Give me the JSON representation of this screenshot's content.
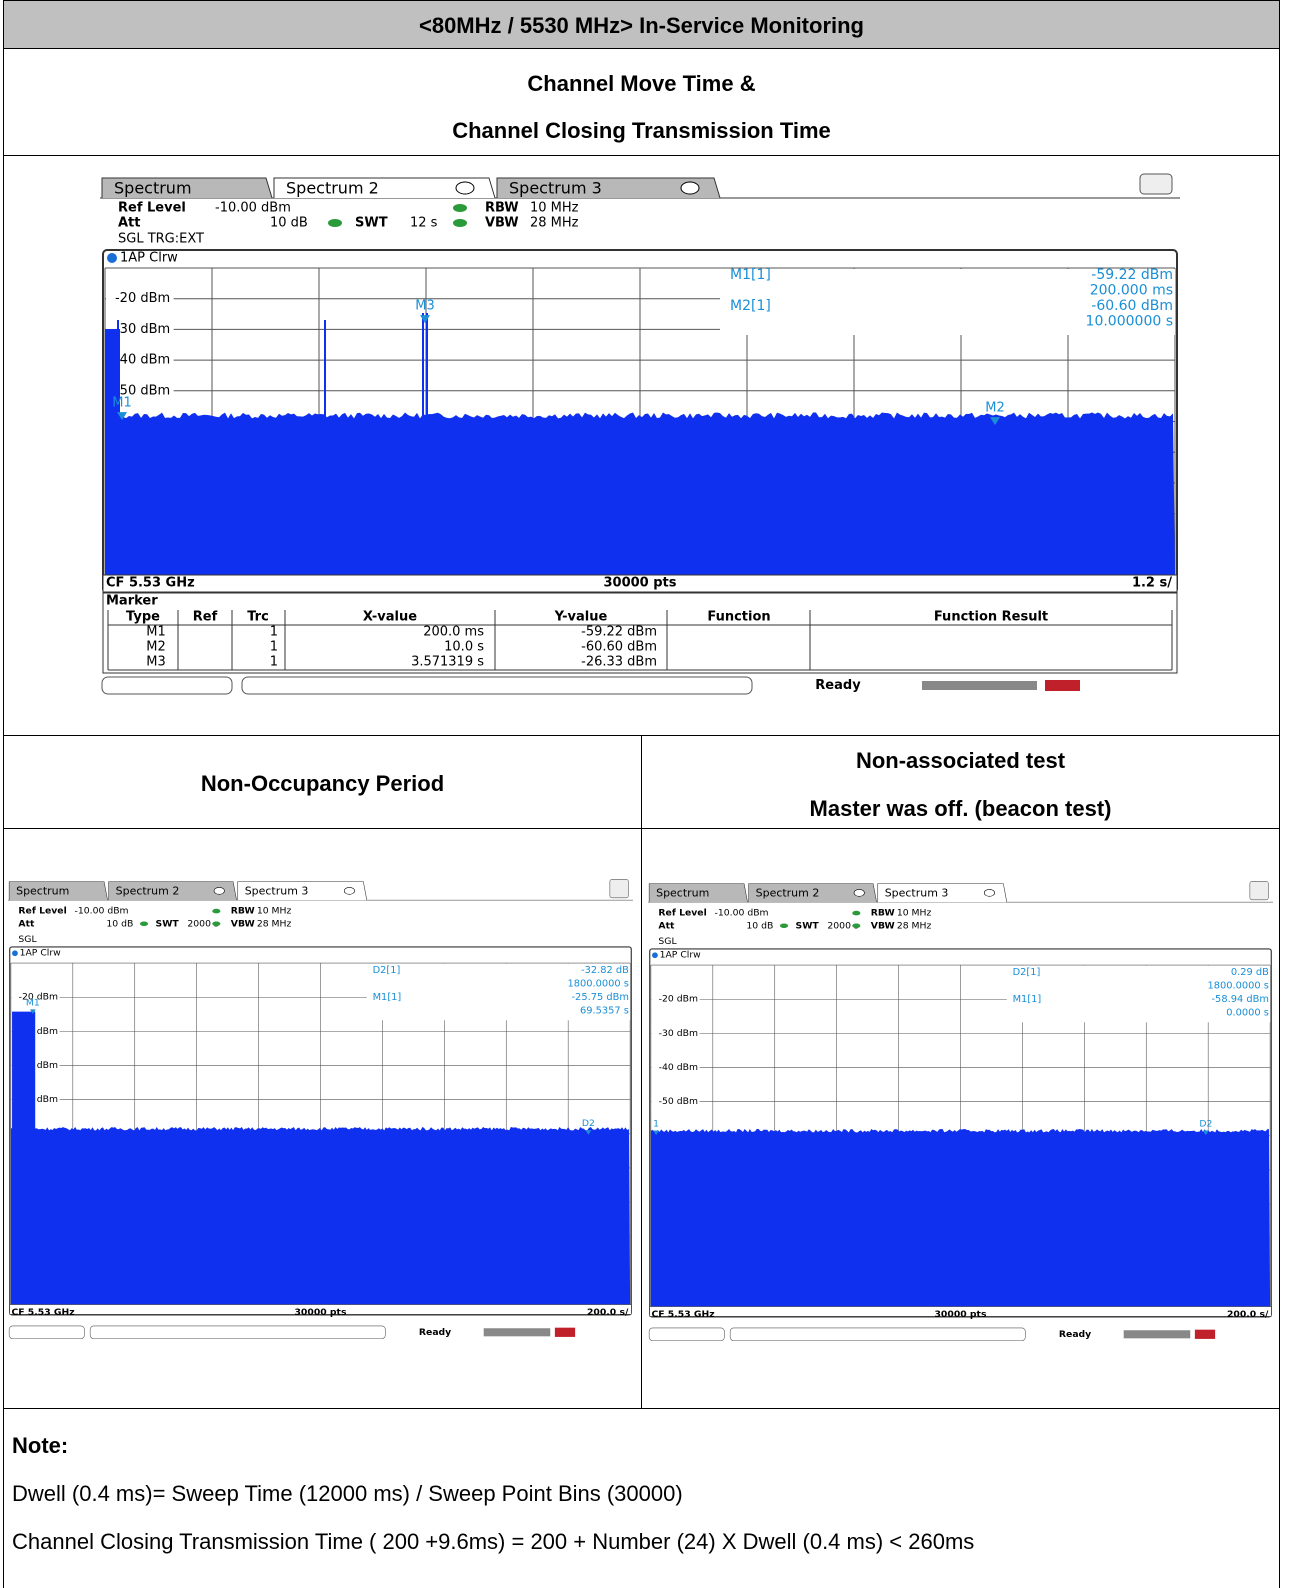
{
  "header": {
    "title": "<80MHz / 5530 MHz> In-Service Monitoring"
  },
  "section1": {
    "lines": [
      "Channel Move Time &",
      "Channel Closing Transmission Time"
    ]
  },
  "section2": {
    "left": "Non-Occupancy Period",
    "right": [
      "Non-associated test",
      "Master was off. (beacon test)"
    ]
  },
  "screens": [
    {
      "tabs": [
        "Spectrum",
        "Spectrum 2",
        "Spectrum 3"
      ],
      "settings": {
        "ref_label": "Ref Level",
        "ref": "-10.00 dBm",
        "att_label": "Att",
        "att": "10 dB",
        "swt_label": "SWT",
        "swt": "12 s",
        "rbw_label": "RBW",
        "rbw": "10 MHz",
        "vbw_label": "VBW",
        "vbw": "28 MHz",
        "mode": "SGL TRG:EXT"
      },
      "trace": "1AP Clrw",
      "ylabels": [
        "-20 dBm",
        "-30 dBm",
        "-40 dBm",
        "-50 dBm"
      ],
      "readout": [
        [
          "M1[1]",
          "-59.22 dBm"
        ],
        [
          "",
          "200.000 ms"
        ],
        [
          "M2[1]",
          "-60.60 dBm"
        ],
        [
          "",
          "10.000000 s"
        ]
      ],
      "markers": [
        "M1",
        "M2",
        "M3"
      ],
      "footer": {
        "cf": "CF 5.53 GHz",
        "pts": "30000 pts",
        "span": "1.2 s/"
      },
      "table": {
        "title": "Marker",
        "header": [
          "Type",
          "Ref",
          "Trc",
          "X-value",
          "Y-value",
          "Function",
          "Function Result"
        ],
        "rows": [
          {
            "type": "M1",
            "trc": "1",
            "x": "200.0 ms",
            "y": "-59.22 dBm"
          },
          {
            "type": "M2",
            "trc": "1",
            "x": "10.0 s",
            "y": "-60.60 dBm"
          },
          {
            "type": "M3",
            "trc": "1",
            "x": "3.571319 s",
            "y": "-26.33 dBm"
          }
        ]
      },
      "status": "Ready"
    },
    {
      "tabs": [
        "Spectrum",
        "Spectrum 2",
        "Spectrum 3"
      ],
      "settings": {
        "ref_label": "Ref Level",
        "ref": "-10.00 dBm",
        "att_label": "Att",
        "att": "10 dB",
        "swt_label": "SWT",
        "swt": "2000 s",
        "rbw_label": "RBW",
        "rbw": "10 MHz",
        "vbw_label": "VBW",
        "vbw": "28 MHz",
        "mode": "SGL"
      },
      "trace": "1AP Clrw",
      "ylabels": [
        "-20 dBm",
        "dBm",
        "dBm",
        "dBm"
      ],
      "readout": [
        [
          "D2[1]",
          "-32.82 dB"
        ],
        [
          "",
          "1800.0000 s"
        ],
        [
          "M1[1]",
          "-25.75 dBm"
        ],
        [
          "",
          "69.5357 s"
        ]
      ],
      "markers": [
        "M1",
        "D2"
      ],
      "footer": {
        "cf": "CF 5.53 GHz",
        "pts": "30000 pts",
        "span": "200.0 s/"
      },
      "status": "Ready"
    },
    {
      "tabs": [
        "Spectrum",
        "Spectrum 2",
        "Spectrum 3"
      ],
      "settings": {
        "ref_label": "Ref Level",
        "ref": "-10.00 dBm",
        "att_label": "Att",
        "att": "10 dB",
        "swt_label": "SWT",
        "swt": "2000 s",
        "rbw_label": "RBW",
        "rbw": "10 MHz",
        "vbw_label": "VBW",
        "vbw": "28 MHz",
        "mode": "SGL"
      },
      "trace": "1AP Clrw",
      "ylabels": [
        "-20 dBm",
        "-30 dBm",
        "-40 dBm",
        "-50 dBm"
      ],
      "readout": [
        [
          "D2[1]",
          "0.29 dB"
        ],
        [
          "",
          "1800.0000 s"
        ],
        [
          "M1[1]",
          "-58.94 dBm"
        ],
        [
          "",
          "0.0000 s"
        ]
      ],
      "markers": [
        "1",
        "D2"
      ],
      "footer": {
        "cf": "CF 5.53 GHz",
        "pts": "30000 pts",
        "span": "200.0 s/"
      },
      "status": "Ready"
    }
  ],
  "note": {
    "title": "Note:",
    "lines": [
      "Dwell (0.4 ms)= Sweep Time (12000 ms) / Sweep Point Bins (30000)",
      "Channel Closing Transmission Time ( 200 +9.6ms) = 200 + Number (24) X Dwell (0.4 ms) < 260ms"
    ]
  }
}
